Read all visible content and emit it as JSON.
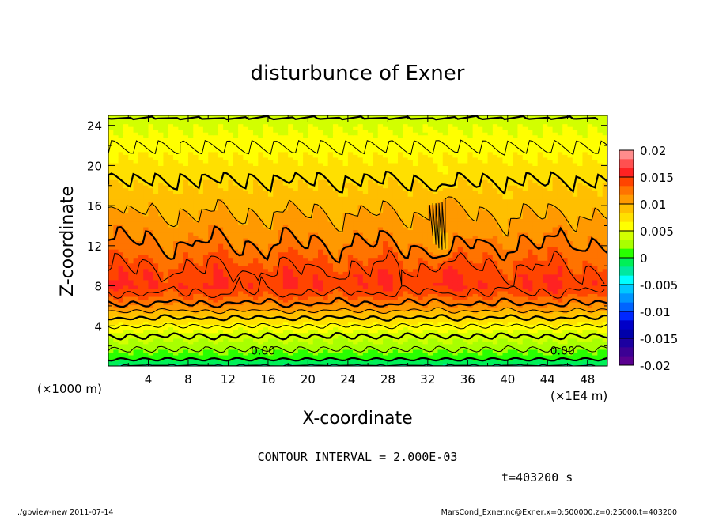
{
  "chart_data": {
    "type": "heatmap",
    "title": "disturbunce of Exner",
    "xlabel": "X-coordinate",
    "ylabel": "Z-coordinate",
    "x_unit_label": "(×1000 m)",
    "x_unit_label_right": "(×1E4 m)",
    "x_ticks": [
      "4",
      "8",
      "12",
      "16",
      "20",
      "24",
      "28",
      "32",
      "36",
      "40",
      "44",
      "48"
    ],
    "y_ticks": [
      "4",
      "8",
      "12",
      "16",
      "20",
      "24"
    ],
    "xlim": [
      0,
      50
    ],
    "ylim": [
      0,
      25
    ],
    "contour_interval_text": "CONTOUR INTERVAL = 2.000E-03",
    "time_text": "t=403200 s",
    "contour_labels": [
      {
        "text": "0.00",
        "x": 15.5,
        "y": 0.9
      },
      {
        "text": "0.00",
        "x": 45.5,
        "y": 0.9
      }
    ],
    "colorbar": {
      "ticks": [
        "0.02",
        "0.015",
        "0.01",
        "0.005",
        "0",
        "-0.005",
        "-0.01",
        "-0.015",
        "-0.02"
      ],
      "range": [
        -0.02,
        0.02
      ],
      "levels": [
        "#ff8c8c",
        "#ff5050",
        "#ff2222",
        "#ff4400",
        "#ff7300",
        "#ff9900",
        "#ffbf00",
        "#ffe000",
        "#ffff00",
        "#d2ff00",
        "#a8ff00",
        "#28ff00",
        "#00f058",
        "#00e8a0",
        "#00ffff",
        "#00c8ff",
        "#0096ff",
        "#0064ff",
        "#0028ff",
        "#0000c8",
        "#0000aa",
        "#1c00a0",
        "#3c0094",
        "#5a0090"
      ]
    },
    "field_profile": {
      "z": [
        0,
        1,
        2,
        3,
        4,
        5,
        6,
        7,
        8,
        9,
        10,
        11,
        12,
        13,
        14,
        15,
        16,
        17,
        18,
        19,
        20,
        21,
        22,
        23,
        24,
        25
      ],
      "value": [
        -0.002,
        0.001,
        0.0025,
        0.004,
        0.006,
        0.0085,
        0.0115,
        0.0135,
        0.0148,
        0.0145,
        0.0138,
        0.013,
        0.0122,
        0.0114,
        0.0108,
        0.0101,
        0.0095,
        0.0089,
        0.0083,
        0.0077,
        0.0071,
        0.0065,
        0.0059,
        0.0053,
        0.0047,
        0.0042
      ]
    },
    "footer_left": "./gpview-new  2011-07-14",
    "footer_right": "MarsCond_Exner.nc@Exner,x=0:500000,z=0:25000,t=403200"
  }
}
